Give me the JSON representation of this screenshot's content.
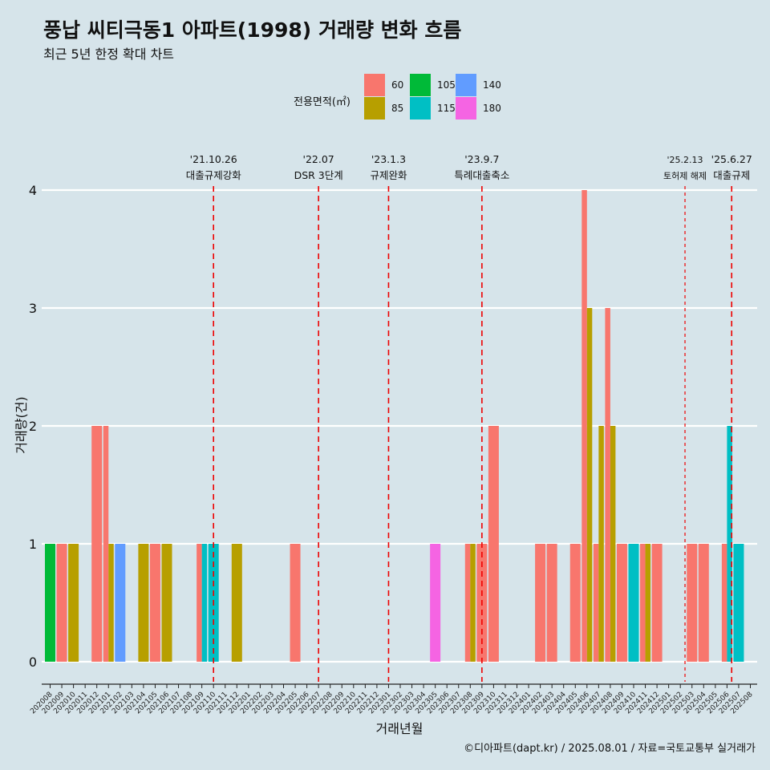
{
  "chart_data": {
    "type": "bar",
    "title": "풍납 씨티극동1 아파트(1998) 거래량 변화 흐름",
    "subtitle": "최근 5년 한정 확대 차트",
    "xlabel": "거래년월",
    "ylabel": "거래량(건)",
    "ylim": [
      -0.2,
      4.3
    ],
    "yticks": [
      0,
      1,
      2,
      3,
      4
    ],
    "grid": true,
    "legend": {
      "title": "전용면적(㎡)",
      "placement": "top",
      "items": [
        {
          "label": "60",
          "color": "#f8766d"
        },
        {
          "label": "85",
          "color": "#b79f00"
        },
        {
          "label": "105",
          "color": "#00ba38"
        },
        {
          "label": "115",
          "color": "#00bfc4"
        },
        {
          "label": "140",
          "color": "#619cff"
        },
        {
          "label": "180",
          "color": "#f564e3"
        }
      ]
    },
    "categories": [
      "202008",
      "202009",
      "202010",
      "202011",
      "202012",
      "202101",
      "202102",
      "202103",
      "202104",
      "202105",
      "202106",
      "202107",
      "202108",
      "202109",
      "202110",
      "202111",
      "202112",
      "202201",
      "202202",
      "202203",
      "202204",
      "202205",
      "202206",
      "202207",
      "202208",
      "202209",
      "202210",
      "202211",
      "202212",
      "202301",
      "202302",
      "202303",
      "202304",
      "202305",
      "202306",
      "202307",
      "202308",
      "202309",
      "202310",
      "202311",
      "202312",
      "202401",
      "202402",
      "202403",
      "202404",
      "202405",
      "202406",
      "202407",
      "202408",
      "202409",
      "202410",
      "202411",
      "202412",
      "202501",
      "202502",
      "202503",
      "202504",
      "202505",
      "202506",
      "202507",
      "202508"
    ],
    "bars": [
      {
        "month": "202008",
        "area": "105",
        "value": 1
      },
      {
        "month": "202009",
        "area": "60",
        "value": 1
      },
      {
        "month": "202010",
        "area": "85",
        "value": 1
      },
      {
        "month": "202012",
        "area": "60",
        "value": 2
      },
      {
        "month": "202101",
        "area": "60",
        "value": 2
      },
      {
        "month": "202101",
        "area": "85",
        "value": 1
      },
      {
        "month": "202102",
        "area": "140",
        "value": 1
      },
      {
        "month": "202104",
        "area": "85",
        "value": 1
      },
      {
        "month": "202105",
        "area": "60",
        "value": 1
      },
      {
        "month": "202106",
        "area": "85",
        "value": 1
      },
      {
        "month": "202109",
        "area": "60",
        "value": 1
      },
      {
        "month": "202109",
        "area": "115",
        "value": 1
      },
      {
        "month": "202110",
        "area": "115",
        "value": 1
      },
      {
        "month": "202112",
        "area": "85",
        "value": 1
      },
      {
        "month": "202205",
        "area": "60",
        "value": 1
      },
      {
        "month": "202305",
        "area": "180",
        "value": 1
      },
      {
        "month": "202308",
        "area": "60",
        "value": 1
      },
      {
        "month": "202308",
        "area": "85",
        "value": 1
      },
      {
        "month": "202309",
        "area": "60",
        "value": 1
      },
      {
        "month": "202310",
        "area": "60",
        "value": 2
      },
      {
        "month": "202402",
        "area": "60",
        "value": 1
      },
      {
        "month": "202403",
        "area": "60",
        "value": 1
      },
      {
        "month": "202405",
        "area": "60",
        "value": 1
      },
      {
        "month": "202406",
        "area": "60",
        "value": 4
      },
      {
        "month": "202406",
        "area": "85",
        "value": 3
      },
      {
        "month": "202407",
        "area": "60",
        "value": 1
      },
      {
        "month": "202407",
        "area": "85",
        "value": 2
      },
      {
        "month": "202408",
        "area": "60",
        "value": 3
      },
      {
        "month": "202408",
        "area": "85",
        "value": 2
      },
      {
        "month": "202409",
        "area": "60",
        "value": 1
      },
      {
        "month": "202410",
        "area": "115",
        "value": 1
      },
      {
        "month": "202411",
        "area": "60",
        "value": 1
      },
      {
        "month": "202411",
        "area": "85",
        "value": 1
      },
      {
        "month": "202412",
        "area": "60",
        "value": 1
      },
      {
        "month": "202503",
        "area": "60",
        "value": 1
      },
      {
        "month": "202504",
        "area": "60",
        "value": 1
      },
      {
        "month": "202506",
        "area": "60",
        "value": 1
      },
      {
        "month": "202506",
        "area": "115",
        "value": 2
      },
      {
        "month": "202507",
        "area": "115",
        "value": 1
      }
    ],
    "events": [
      {
        "position": 14.0,
        "date": "'21.10.26",
        "label": "대출규제강화",
        "dashed": "long"
      },
      {
        "position": 23.0,
        "date": "'22.07",
        "label": "DSR 3단계",
        "dashed": "long"
      },
      {
        "position": 29.0,
        "date": "'23.1.3",
        "label": "규제완화",
        "dashed": "long"
      },
      {
        "position": 37.0,
        "date": "'23.9.7",
        "label": "특례대출축소",
        "dashed": "long"
      },
      {
        "position": 54.4,
        "date": "'25.2.13",
        "label": "토허제 해제",
        "dashed": "short"
      },
      {
        "position": 58.4,
        "date": "'25.6.27",
        "label": "대출규제",
        "dashed": "long"
      }
    ]
  },
  "caption": "©디아파트(dapt.kr) / 2025.08.01 / 자료=국토교통부 실거래가"
}
